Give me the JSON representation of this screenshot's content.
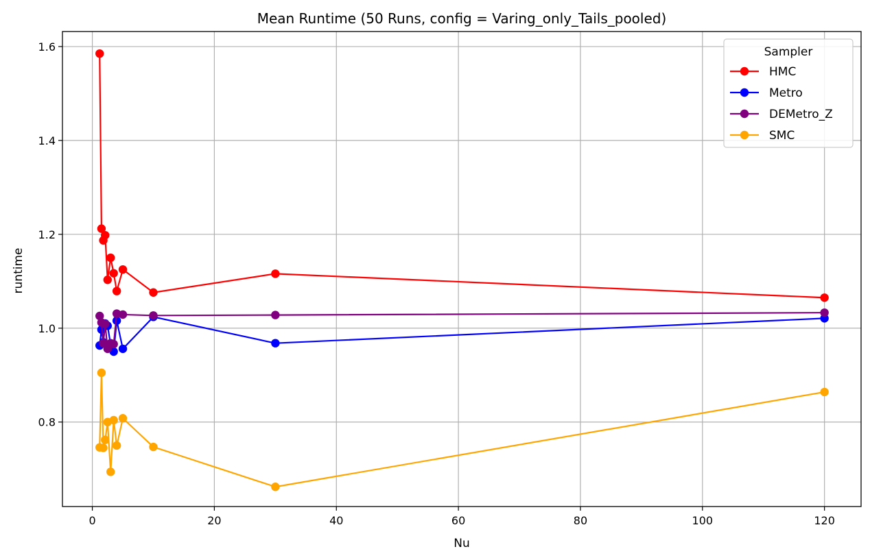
{
  "chart_data": {
    "type": "line",
    "title": "Mean Runtime (50 Runs, config = Varing_only_Tails_pooled)",
    "xlabel": "Nu",
    "ylabel": "runtime",
    "xlim": [
      -4.9,
      126
    ],
    "ylim": [
      0.62,
      1.632
    ],
    "xticks": [
      0,
      20,
      40,
      60,
      80,
      100,
      120
    ],
    "yticks": [
      0.8,
      1.0,
      1.2,
      1.4,
      1.6
    ],
    "xtick_labels": [
      "0",
      "20",
      "40",
      "60",
      "80",
      "100",
      "120"
    ],
    "ytick_labels": [
      "0.8",
      "1.0",
      "1.2",
      "1.4",
      "1.6"
    ],
    "grid": true,
    "legend": {
      "title": "Sampler",
      "position": "top-right"
    },
    "series": [
      {
        "name": "HMC",
        "color": "#ff0000",
        "x": [
          1.2,
          1.5,
          1.8,
          2.1,
          2.5,
          3.0,
          3.5,
          4.0,
          5.0,
          10,
          30,
          120
        ],
        "y": [
          1.585,
          1.212,
          1.187,
          1.198,
          1.103,
          1.15,
          1.117,
          1.079,
          1.125,
          1.076,
          1.116,
          1.065
        ]
      },
      {
        "name": "Metro",
        "color": "#0000ff",
        "x": [
          1.2,
          1.5,
          1.8,
          2.1,
          2.5,
          3.0,
          3.5,
          4.0,
          5.0,
          10,
          30,
          120
        ],
        "y": [
          0.963,
          0.997,
          0.97,
          1.01,
          1.005,
          0.965,
          0.95,
          1.016,
          0.956,
          1.024,
          0.968,
          1.021
        ]
      },
      {
        "name": "DEMetro_Z",
        "color": "#800080",
        "x": [
          1.2,
          1.5,
          1.8,
          2.1,
          2.5,
          3.0,
          3.5,
          4.0,
          5.0,
          10,
          30,
          120
        ],
        "y": [
          1.026,
          1.012,
          0.968,
          1.009,
          0.956,
          0.968,
          0.966,
          1.031,
          1.029,
          1.027,
          1.028,
          1.033
        ]
      },
      {
        "name": "SMC",
        "color": "#ffa500",
        "x": [
          1.2,
          1.5,
          1.8,
          2.1,
          2.5,
          3.0,
          3.5,
          4.0,
          5.0,
          10,
          30,
          120
        ],
        "y": [
          0.746,
          0.905,
          0.745,
          0.762,
          0.8,
          0.694,
          0.804,
          0.75,
          0.808,
          0.747,
          0.662,
          0.864
        ]
      }
    ]
  }
}
